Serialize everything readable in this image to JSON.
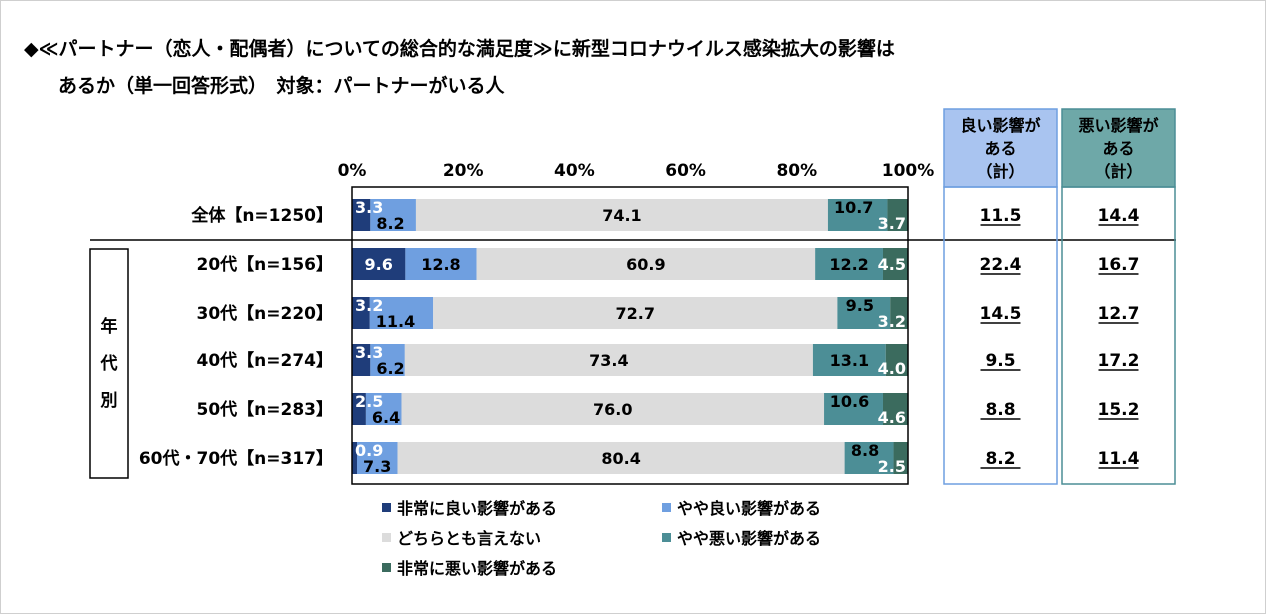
{
  "title_line1": "◆≪パートナー（恋人・配偶者）についての総合的な満足度≫に新型コロナウイルス感染拡大の影響は",
  "title_line2": "あるか（単一回答形式）　対象：パートナーがいる人",
  "colors": {
    "very_good": "#1f3d7a",
    "somewhat_good": "#6f9fe0",
    "neither": "#dcdcdc",
    "somewhat_bad": "#4c8e96",
    "very_bad": "#3b6b5e",
    "good_header_bg": "#a9c4f0",
    "good_header_border": "#6f9fe0",
    "bad_header_bg": "#6ea8a8",
    "bad_header_border": "#4c8e96"
  },
  "group_label": [
    "年",
    "代",
    "別"
  ],
  "col_headers": {
    "good": [
      "良い影響が",
      "ある",
      "（計）"
    ],
    "bad": [
      "悪い影響が",
      "ある",
      "（計）"
    ]
  },
  "chart_data": {
    "type": "bar",
    "orientation": "horizontal",
    "stacked": true,
    "xlim": [
      0,
      100
    ],
    "x_ticks": [
      "0%",
      "20%",
      "40%",
      "60%",
      "80%",
      "100%"
    ],
    "categories": [
      "全体【n=1250】",
      "20代【n=156】",
      "30代【n=220】",
      "40代【n=274】",
      "50代【n=283】",
      "60代・70代【n=317】"
    ],
    "series": [
      {
        "name": "非常に良い影響がある",
        "values": [
          3.3,
          9.6,
          3.2,
          3.3,
          2.5,
          0.9
        ]
      },
      {
        "name": "やや良い影響がある",
        "values": [
          8.2,
          12.8,
          11.4,
          6.2,
          6.4,
          7.3
        ]
      },
      {
        "name": "どちらとも言えない",
        "values": [
          74.1,
          60.9,
          72.7,
          73.4,
          76.0,
          80.4
        ]
      },
      {
        "name": "やや悪い影響がある",
        "values": [
          10.7,
          12.2,
          9.5,
          13.1,
          10.6,
          8.8
        ]
      },
      {
        "name": "非常に悪い影響がある",
        "values": [
          3.7,
          4.5,
          3.2,
          4.0,
          4.6,
          2.5
        ]
      }
    ],
    "good_total": [
      "11.5",
      "22.4",
      "14.5",
      "9.5",
      "8.8",
      "8.2"
    ],
    "bad_total": [
      "14.4",
      "16.7",
      "12.7",
      "17.2",
      "15.2",
      "11.4"
    ],
    "legend_position": "bottom"
  }
}
